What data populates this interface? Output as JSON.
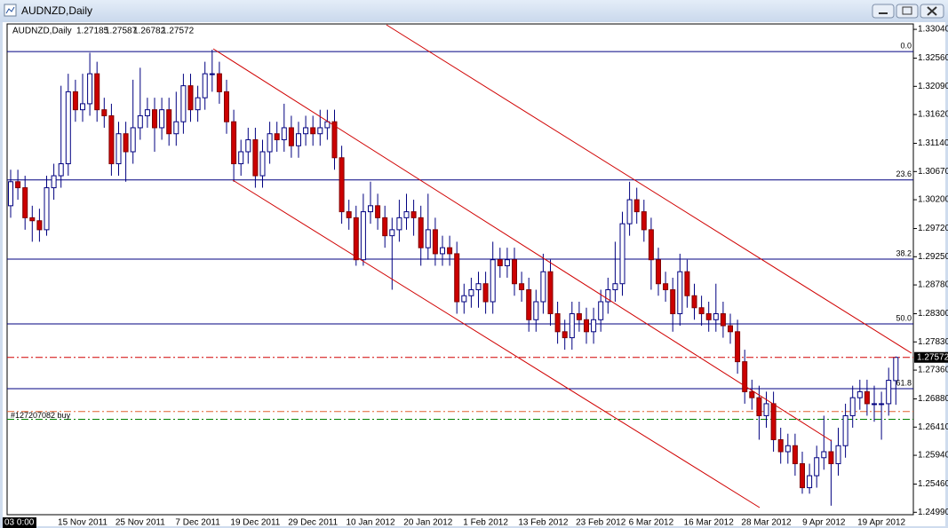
{
  "window_title": "AUDNZD,Daily",
  "chart_data": {
    "type": "candlestick",
    "symbol": "AUDNZD,Daily",
    "crosshair_label": "03 0:00",
    "up_color": "#ffffff",
    "down_color": "#cc0000",
    "wick_color": "#000080",
    "fib_color": "#000080",
    "grid": false,
    "categories": [
      null,
      null,
      null,
      null,
      null,
      null,
      null,
      null,
      null,
      null,
      "15 Nov 2011",
      null,
      null,
      null,
      null,
      null,
      null,
      null,
      "25 Nov 2011",
      null,
      null,
      null,
      null,
      null,
      null,
      null,
      "7 Dec 2011",
      null,
      null,
      null,
      null,
      null,
      null,
      null,
      "19 Dec 2011",
      null,
      null,
      null,
      null,
      null,
      null,
      null,
      "29 Dec 2011",
      null,
      null,
      null,
      null,
      null,
      null,
      null,
      "10 Jan 2012",
      null,
      null,
      null,
      null,
      null,
      null,
      null,
      "20 Jan 2012",
      null,
      null,
      null,
      null,
      null,
      null,
      null,
      "1 Feb 2012",
      null,
      null,
      null,
      null,
      null,
      null,
      null,
      "13 Feb 2012",
      null,
      null,
      null,
      null,
      null,
      null,
      null,
      "23 Feb 2012",
      null,
      null,
      null,
      null,
      null,
      null,
      "6 Mar 2012",
      null,
      null,
      null,
      null,
      null,
      null,
      null,
      "16 Mar 2012",
      null,
      null,
      null,
      null,
      null,
      null,
      null,
      "28 Mar 2012",
      null,
      null,
      null,
      null,
      null,
      null,
      null,
      "9 Apr 2012",
      null,
      null,
      null,
      null,
      null,
      null,
      null,
      "19 Apr 2012",
      null,
      null
    ],
    "open": [
      1.301,
      1.305,
      1.304,
      1.299,
      1.2985,
      1.297,
      1.304,
      1.306,
      1.308,
      1.32,
      1.317,
      1.318,
      1.323,
      1.317,
      1.316,
      1.308,
      1.313,
      1.31,
      1.314,
      1.316,
      1.317,
      1.314,
      1.317,
      1.313,
      1.315,
      1.321,
      1.317,
      1.319,
      1.323,
      1.323,
      1.32,
      1.315,
      1.308,
      1.31,
      1.312,
      1.306,
      1.31,
      1.313,
      1.312,
      1.314,
      1.311,
      1.313,
      1.314,
      1.313,
      1.314,
      1.315,
      1.309,
      1.3,
      1.299,
      1.292,
      1.3,
      1.301,
      1.299,
      1.296,
      1.297,
      1.299,
      1.3,
      1.299,
      1.294,
      1.297,
      1.293,
      1.294,
      1.293,
      1.285,
      1.286,
      1.287,
      1.288,
      1.285,
      1.292,
      1.291,
      1.292,
      1.288,
      1.287,
      1.282,
      1.285,
      1.29,
      1.283,
      1.28,
      1.279,
      1.283,
      1.282,
      1.28,
      1.282,
      1.285,
      1.287,
      1.288,
      1.298,
      1.302,
      1.3,
      1.297,
      1.292,
      1.288,
      1.287,
      1.283,
      1.29,
      1.286,
      1.284,
      1.283,
      1.282,
      1.283,
      1.281,
      1.28,
      1.275,
      1.27,
      1.269,
      1.266,
      1.268,
      1.262,
      1.26,
      1.261,
      1.258,
      1.254,
      1.256,
      1.259,
      1.26,
      1.258,
      1.261,
      1.266,
      1.269,
      1.27,
      1.268,
      1.268,
      1.268,
      1.27185
    ],
    "high": [
      1.307,
      1.307,
      1.306,
      1.301,
      1.3005,
      1.306,
      1.308,
      1.321,
      1.323,
      1.322,
      1.323,
      1.3265,
      1.325,
      1.319,
      1.318,
      1.315,
      1.315,
      1.322,
      1.324,
      1.319,
      1.319,
      1.319,
      1.319,
      1.32,
      1.323,
      1.323,
      1.321,
      1.325,
      1.327,
      1.325,
      1.322,
      1.317,
      1.312,
      1.314,
      1.314,
      1.312,
      1.315,
      1.315,
      1.318,
      1.316,
      1.315,
      1.316,
      1.316,
      1.317,
      1.317,
      1.317,
      1.311,
      1.302,
      1.301,
      1.303,
      1.305,
      1.303,
      1.301,
      1.299,
      1.302,
      1.303,
      1.302,
      1.301,
      1.303,
      1.299,
      1.296,
      1.296,
      1.295,
      1.288,
      1.289,
      1.29,
      1.29,
      1.295,
      1.294,
      1.294,
      1.294,
      1.29,
      1.289,
      1.287,
      1.293,
      1.292,
      1.285,
      1.282,
      1.285,
      1.285,
      1.284,
      1.284,
      1.287,
      1.289,
      1.295,
      1.3,
      1.305,
      1.304,
      1.302,
      1.299,
      1.294,
      1.29,
      1.289,
      1.293,
      1.292,
      1.288,
      1.286,
      1.285,
      1.288,
      1.285,
      1.283,
      1.282,
      1.277,
      1.272,
      1.271,
      1.27,
      1.27,
      1.264,
      1.263,
      1.263,
      1.26,
      1.258,
      1.261,
      1.266,
      1.262,
      1.264,
      1.268,
      1.271,
      1.272,
      1.272,
      1.271,
      1.27,
      1.274,
      1.27587
    ],
    "low": [
      1.299,
      1.302,
      1.297,
      1.295,
      1.295,
      1.296,
      1.302,
      1.304,
      1.306,
      1.315,
      1.315,
      1.316,
      1.315,
      1.314,
      1.306,
      1.306,
      1.305,
      1.308,
      1.312,
      1.314,
      1.31,
      1.312,
      1.311,
      1.311,
      1.313,
      1.315,
      1.315,
      1.317,
      1.32,
      1.318,
      1.313,
      1.305,
      1.306,
      1.308,
      1.304,
      1.304,
      1.308,
      1.31,
      1.31,
      1.309,
      1.309,
      1.311,
      1.311,
      1.311,
      1.312,
      1.307,
      1.298,
      1.297,
      1.291,
      1.291,
      1.298,
      1.297,
      1.294,
      1.287,
      1.295,
      1.297,
      1.296,
      1.291,
      1.292,
      1.291,
      1.291,
      1.291,
      1.283,
      1.283,
      1.284,
      1.284,
      1.283,
      1.283,
      1.289,
      1.289,
      1.286,
      1.285,
      1.28,
      1.28,
      1.283,
      1.281,
      1.278,
      1.277,
      1.277,
      1.28,
      1.278,
      1.278,
      1.28,
      1.283,
      1.285,
      1.286,
      1.296,
      1.298,
      1.295,
      1.287,
      1.286,
      1.285,
      1.28,
      1.281,
      1.284,
      1.282,
      1.281,
      1.28,
      1.28,
      1.279,
      1.278,
      1.273,
      1.268,
      1.267,
      1.262,
      1.264,
      1.26,
      1.258,
      1.258,
      1.256,
      1.253,
      1.253,
      1.254,
      1.257,
      1.251,
      1.256,
      1.259,
      1.264,
      1.267,
      1.266,
      1.265,
      1.262,
      1.266,
      1.26782
    ],
    "close": [
      1.305,
      1.304,
      1.299,
      1.2985,
      1.297,
      1.304,
      1.306,
      1.308,
      1.32,
      1.317,
      1.318,
      1.323,
      1.317,
      1.316,
      1.308,
      1.313,
      1.31,
      1.314,
      1.316,
      1.317,
      1.314,
      1.317,
      1.313,
      1.315,
      1.321,
      1.317,
      1.319,
      1.323,
      1.323,
      1.32,
      1.315,
      1.308,
      1.31,
      1.312,
      1.306,
      1.31,
      1.313,
      1.312,
      1.314,
      1.311,
      1.313,
      1.314,
      1.313,
      1.314,
      1.315,
      1.309,
      1.3,
      1.299,
      1.292,
      1.3,
      1.301,
      1.299,
      1.296,
      1.297,
      1.299,
      1.3,
      1.299,
      1.294,
      1.297,
      1.293,
      1.294,
      1.293,
      1.285,
      1.286,
      1.287,
      1.288,
      1.285,
      1.292,
      1.291,
      1.292,
      1.288,
      1.287,
      1.282,
      1.285,
      1.29,
      1.283,
      1.28,
      1.279,
      1.283,
      1.282,
      1.28,
      1.282,
      1.285,
      1.287,
      1.288,
      1.298,
      1.302,
      1.3,
      1.297,
      1.292,
      1.288,
      1.287,
      1.283,
      1.29,
      1.286,
      1.284,
      1.283,
      1.282,
      1.283,
      1.281,
      1.28,
      1.275,
      1.27,
      1.269,
      1.266,
      1.268,
      1.262,
      1.26,
      1.261,
      1.258,
      1.254,
      1.256,
      1.259,
      1.26,
      1.258,
      1.261,
      1.266,
      1.269,
      1.27,
      1.268,
      1.268,
      1.268,
      1.2719,
      1.27572
    ],
    "ylim": [
      1.2495,
      1.3313
    ],
    "yticks": [
      {
        "value": 1.3304,
        "label": "1.33040"
      },
      {
        "value": 1.3256,
        "label": "1.32560"
      },
      {
        "value": 1.3209,
        "label": "1.32090"
      },
      {
        "value": 1.3162,
        "label": "1.31620"
      },
      {
        "value": 1.3114,
        "label": "1.31140"
      },
      {
        "value": 1.3067,
        "label": "1.30670"
      },
      {
        "value": 1.302,
        "label": "1.30200"
      },
      {
        "value": 1.2972,
        "label": "1.29720"
      },
      {
        "value": 1.2925,
        "label": "1.29250"
      },
      {
        "value": 1.2878,
        "label": "1.28780"
      },
      {
        "value": 1.283,
        "label": "1.28300"
      },
      {
        "value": 1.2783,
        "label": "1.27830"
      },
      {
        "value": 1.2736,
        "label": "1.27360"
      },
      {
        "value": 1.2688,
        "label": "1.26880"
      },
      {
        "value": 1.2641,
        "label": "1.26410"
      },
      {
        "value": 1.2594,
        "label": "1.25940"
      },
      {
        "value": 1.2546,
        "label": "1.25460"
      },
      {
        "value": 1.2499,
        "label": "1.24990"
      }
    ],
    "fib_levels": [
      {
        "label": "0.0",
        "price": 1.3267
      },
      {
        "label": "23.6",
        "price": 1.3053
      },
      {
        "label": "38.2",
        "price": 1.2921
      },
      {
        "label": "50.0",
        "price": 1.2813
      },
      {
        "label": "61.8",
        "price": 1.2705
      }
    ],
    "order": {
      "label": "#127207082 buy",
      "price": 1.2667,
      "color": "#e06030"
    },
    "target": {
      "price": 1.2654,
      "color": "#008000"
    }
  }
}
